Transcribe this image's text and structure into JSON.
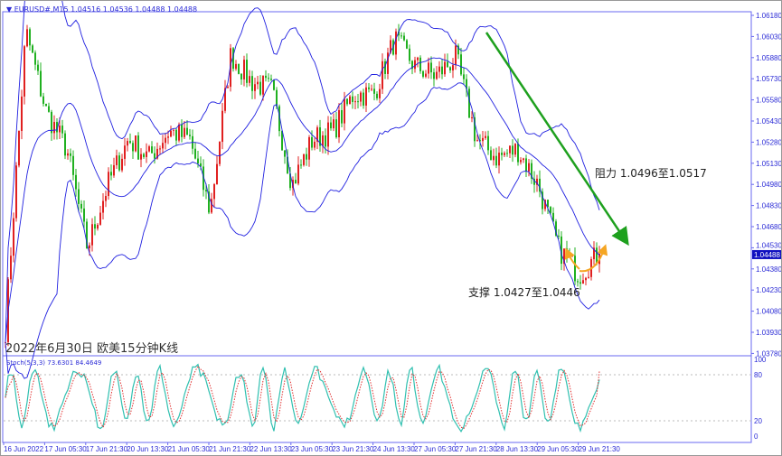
{
  "header": {
    "symbol": "EURUSD#,M15",
    "ohlc": "1.04516 1.04536 1.04488 1.04488"
  },
  "caption": "2022年6月30日 欧美15分钟K线",
  "annotations": {
    "resistance": "阻力 1.0496至1.0517",
    "support": "支撑 1.0427至1.0446"
  },
  "indicator": {
    "label": "Stoch(5,3,3) 73.6301 84.4649",
    "main": 73.6301,
    "signal": 84.4649,
    "levels": [
      "100",
      "80",
      "20",
      "0"
    ]
  },
  "colors": {
    "bull": "#e02020",
    "bear": "#20b020",
    "band": "#2020e0",
    "axis": "#6a6af0",
    "trend": "#1ea01e",
    "arrow": "#f5a623",
    "stoch_main": "#30c0b0",
    "stoch_signal": "#e03030"
  },
  "chart_data": {
    "type": "candlestick",
    "indicators": [
      "Bollinger Bands",
      "Stochastic"
    ],
    "ylim": [
      1.0378,
      1.0625
    ],
    "y_ticks": [
      "1.06180",
      "1.06030",
      "1.05880",
      "1.05730",
      "1.05580",
      "1.05430",
      "1.05280",
      "1.05130",
      "1.04980",
      "1.04830",
      "1.04680",
      "1.04530",
      "1.04380",
      "1.04230",
      "1.04080",
      "1.03930",
      "1.03780"
    ],
    "current_price": "1.04488",
    "x_ticks": [
      "16 Jun 2022",
      "17 Jun 05:30",
      "17 Jun 21:30",
      "20 Jun 13:30",
      "21 Jun 05:30",
      "21 Jun 21:30",
      "22 Jun 13:30",
      "23 Jun 05:30",
      "23 Jun 21:30",
      "24 Jun 13:30",
      "27 Jun 05:30",
      "27 Jun 21:30",
      "28 Jun 13:30",
      "29 Jun 05:30",
      "29 Jun 21:30"
    ],
    "approx_close_path": [
      1.0395,
      1.0607,
      1.0549,
      1.0523,
      1.0453,
      1.0498,
      1.053,
      1.0517,
      1.0536,
      1.053,
      1.0479,
      1.059,
      1.0571,
      1.0565,
      1.0498,
      1.053,
      1.0536,
      1.0562,
      1.0562,
      1.0601,
      1.0582,
      1.0575,
      1.0588,
      1.053,
      1.0517,
      1.0523,
      1.0498,
      1.0453,
      1.0434,
      1.0449
    ]
  }
}
